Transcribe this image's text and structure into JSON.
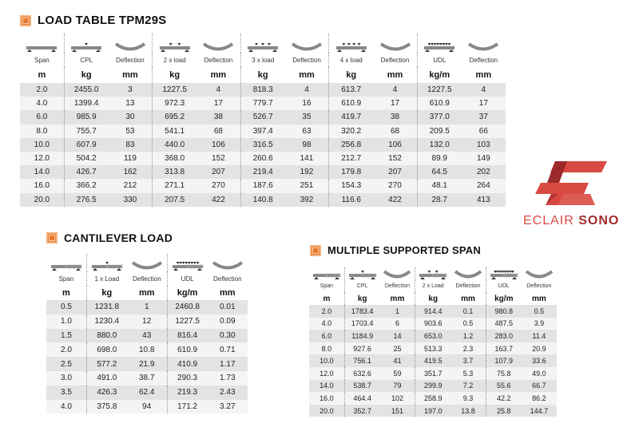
{
  "colors": {
    "accent": "#e8792b",
    "brand_red": "#d94a40",
    "brand_dark": "#a52b2b",
    "row_dark": "#e3e3e3",
    "row_light": "#f4f4f4"
  },
  "tables": [
    {
      "title": "LOAD TABLE TPM29S",
      "icons": [
        "span-beam-icon",
        "cpl-load-icon",
        "deflection-icon",
        "two-load-icon",
        "deflection-icon",
        "three-load-icon",
        "deflection-icon",
        "four-load-icon",
        "deflection-icon",
        "udl-load-icon",
        "deflection-icon"
      ],
      "labels": [
        "Span",
        "CPL",
        "Deflection",
        "2 x load",
        "Deflection",
        "3 x load",
        "Deflection",
        "4 x load",
        "Deflection",
        "UDL",
        "Deflection"
      ],
      "units": [
        "m",
        "kg",
        "mm",
        "kg",
        "mm",
        "kg",
        "mm",
        "kg",
        "mm",
        "kg/m",
        "mm"
      ],
      "rows": [
        [
          "2.0",
          "2455.0",
          "3",
          "1227.5",
          "4",
          "818.3",
          "4",
          "613.7",
          "4",
          "1227.5",
          "4"
        ],
        [
          "4.0",
          "1399.4",
          "13",
          "972.3",
          "17",
          "779.7",
          "16",
          "610.9",
          "17",
          "610.9",
          "17"
        ],
        [
          "6.0",
          "985.9",
          "30",
          "695.2",
          "38",
          "526.7",
          "35",
          "419.7",
          "38",
          "377.0",
          "37"
        ],
        [
          "8.0",
          "755.7",
          "53",
          "541.1",
          "68",
          "397.4",
          "63",
          "320.2",
          "68",
          "209.5",
          "66"
        ],
        [
          "10.0",
          "607.9",
          "83",
          "440.0",
          "106",
          "316.5",
          "98",
          "256.8",
          "106",
          "132.0",
          "103"
        ],
        [
          "12.0",
          "504.2",
          "119",
          "368.0",
          "152",
          "260.6",
          "141",
          "212.7",
          "152",
          "89.9",
          "149"
        ],
        [
          "14.0",
          "426.7",
          "162",
          "313.8",
          "207",
          "219.4",
          "192",
          "179.8",
          "207",
          "64.5",
          "202"
        ],
        [
          "16.0",
          "366.2",
          "212",
          "271.1",
          "270",
          "187.6",
          "251",
          "154.3",
          "270",
          "48.1",
          "264"
        ],
        [
          "20.0",
          "276.5",
          "330",
          "207.5",
          "422",
          "140.8",
          "392",
          "116.6",
          "422",
          "28.7",
          "413"
        ]
      ]
    },
    {
      "title": "CANTILEVER LOAD",
      "icons": [
        "cantilever-span-icon",
        "cantilever-point-load-icon",
        "deflection-icon",
        "cantilever-udl-icon",
        "deflection-icon"
      ],
      "labels": [
        "Span",
        "1 x Load",
        "Deflection",
        "UDL",
        "Deflection"
      ],
      "units": [
        "m",
        "kg",
        "mm",
        "kg/m",
        "mm"
      ],
      "rows": [
        [
          "0.5",
          "1231.8",
          "1",
          "2460.8",
          "0.01"
        ],
        [
          "1.0",
          "1230.4",
          "12",
          "1227.5",
          "0.09"
        ],
        [
          "1.5",
          "880.0",
          "43",
          "816.4",
          "0.30"
        ],
        [
          "2.0",
          "698.0",
          "10.8",
          "610.9",
          "0.71"
        ],
        [
          "2.5",
          "577.2",
          "21.9",
          "410.9",
          "1.17"
        ],
        [
          "3.0",
          "491.0",
          "38.7",
          "290.3",
          "1.73"
        ],
        [
          "3.5",
          "426.3",
          "62.4",
          "219.3",
          "2.43"
        ],
        [
          "4.0",
          "375.8",
          "94",
          "171.2",
          "3.27"
        ]
      ]
    },
    {
      "title": "MULTIPLE SUPPORTED SPAN",
      "icons": [
        "multi-span-icon",
        "multi-cpl-icon",
        "deflection-icon",
        "multi-two-load-icon",
        "deflection-icon",
        "multi-udl-icon",
        "deflection-icon"
      ],
      "labels": [
        "Span",
        "CPL",
        "Deflection",
        "2 x Load",
        "Deflection",
        "UDL",
        "Deflection"
      ],
      "units": [
        "m",
        "kg",
        "mm",
        "kg",
        "mm",
        "kg/m",
        "mm"
      ],
      "rows": [
        [
          "2.0",
          "1783.4",
          "1",
          "914.4",
          "0.1",
          "980.8",
          "0.5"
        ],
        [
          "4.0",
          "1703.4",
          "6",
          "903.6",
          "0.5",
          "487.5",
          "3.9"
        ],
        [
          "6.0",
          "1184.9",
          "14",
          "653.0",
          "1.2",
          "283.0",
          "11.4"
        ],
        [
          "8.0",
          "927.6",
          "25",
          "513.3",
          "2.3",
          "163.7",
          "20.9"
        ],
        [
          "10.0",
          "756.1",
          "41",
          "419.5",
          "3.7",
          "107.9",
          "33.6"
        ],
        [
          "12.0",
          "632.6",
          "59",
          "351.7",
          "5.3",
          "75.8",
          "49.0"
        ],
        [
          "14.0",
          "538.7",
          "79",
          "299.9",
          "7.2",
          "55.6",
          "66.7"
        ],
        [
          "16.0",
          "464.4",
          "102",
          "258.9",
          "9.3",
          "42.2",
          "86.2"
        ],
        [
          "20.0",
          "352.7",
          "151",
          "197.0",
          "13.8",
          "25.8",
          "144.7"
        ]
      ]
    }
  ],
  "logo": {
    "brand_light": "ECLAIR",
    "brand_bold": "SONO"
  }
}
